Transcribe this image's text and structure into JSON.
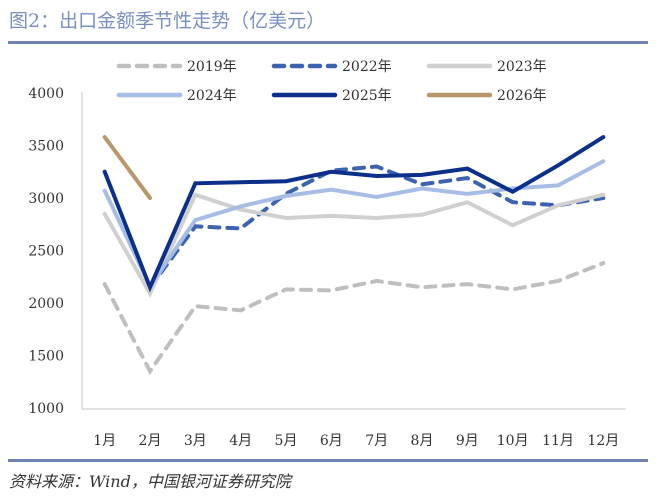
{
  "header": {
    "title": "图2：出口金额季节性走势（亿美元）"
  },
  "footer": {
    "source": "资料来源：Wind，中国银河证券研究院"
  },
  "chart_data": {
    "type": "line",
    "title": "图2：出口金额季节性走势（亿美元）",
    "xlabel": "",
    "ylabel": "",
    "categories": [
      "1月",
      "2月",
      "3月",
      "4月",
      "5月",
      "6月",
      "7月",
      "8月",
      "9月",
      "10月",
      "11月",
      "12月"
    ],
    "ylim": [
      1000,
      4000
    ],
    "yticks": [
      1000,
      1500,
      2000,
      2500,
      3000,
      3500,
      4000
    ],
    "grid": false,
    "legend_position": "top",
    "series": [
      {
        "name": "2019年",
        "color": "#bfbfbf",
        "style": "dashed",
        "width": 4,
        "values": [
          2180,
          1350,
          1970,
          1930,
          2130,
          2120,
          2210,
          2150,
          2180,
          2130,
          2210,
          2380
        ]
      },
      {
        "name": "2022年",
        "color": "#3d62b0",
        "style": "dashed",
        "width": 4,
        "values": [
          null,
          2150,
          2730,
          2710,
          3040,
          3260,
          3300,
          3130,
          3190,
          2960,
          2930,
          3000
        ]
      },
      {
        "name": "2023年",
        "color": "#d0d0d0",
        "style": "solid",
        "width": 4,
        "values": [
          2850,
          2090,
          3030,
          2890,
          2810,
          2830,
          2810,
          2840,
          2960,
          2740,
          2930,
          3030
        ]
      },
      {
        "name": "2024年",
        "color": "#a7bde6",
        "style": "solid",
        "width": 4,
        "values": [
          3070,
          2160,
          2790,
          2920,
          3020,
          3080,
          3010,
          3090,
          3040,
          3090,
          3120,
          3350
        ]
      },
      {
        "name": "2025年",
        "color": "#0b2f8a",
        "style": "solid",
        "width": 4,
        "values": [
          3250,
          2150,
          3140,
          3150,
          3160,
          3250,
          3210,
          3220,
          3280,
          3060,
          3310,
          3580
        ]
      },
      {
        "name": "2026年",
        "color": "#b8986a",
        "style": "solid",
        "width": 4,
        "values": [
          3580,
          3000,
          null,
          null,
          null,
          null,
          null,
          null,
          null,
          null,
          null,
          null
        ]
      }
    ]
  }
}
